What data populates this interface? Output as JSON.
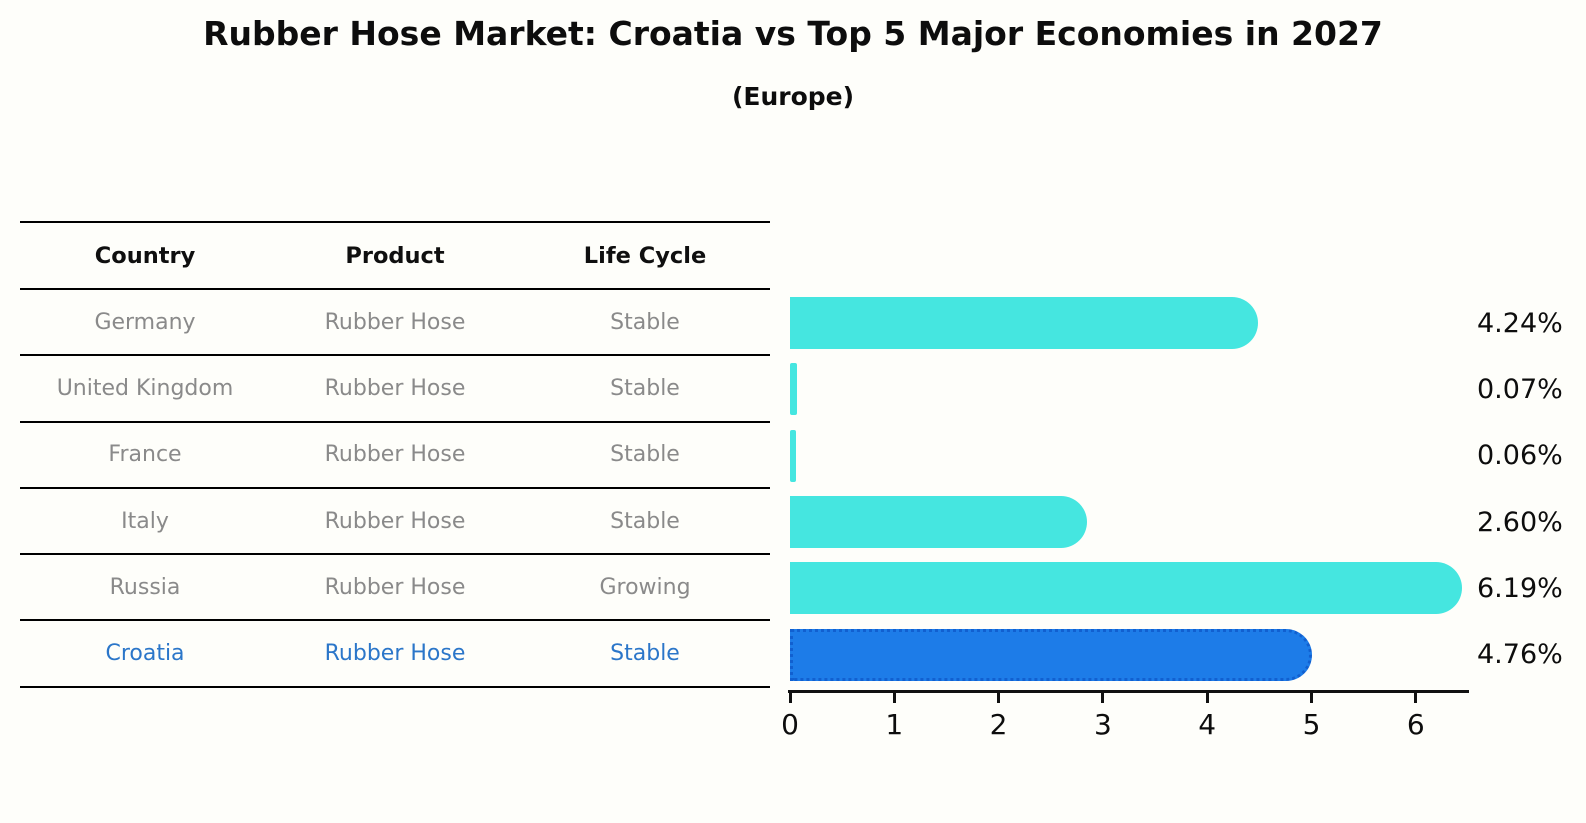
{
  "title": "Rubber Hose Market: Croatia vs Top 5 Major Economies in 2027",
  "subtitle": "(Europe)",
  "table": {
    "headers": [
      "Country",
      "Product",
      "Life Cycle"
    ],
    "rows": [
      {
        "country": "Germany",
        "product": "Rubber Hose",
        "life_cycle": "Stable",
        "highlight": false
      },
      {
        "country": "United Kingdom",
        "product": "Rubber Hose",
        "life_cycle": "Stable",
        "highlight": false
      },
      {
        "country": "France",
        "product": "Rubber Hose",
        "life_cycle": "Stable",
        "highlight": false
      },
      {
        "country": "Italy",
        "product": "Rubber Hose",
        "life_cycle": "Stable",
        "highlight": false
      },
      {
        "country": "Russia",
        "product": "Rubber Hose",
        "life_cycle": "Growing",
        "highlight": false
      },
      {
        "country": "Croatia",
        "product": "Rubber Hose",
        "life_cycle": "Stable",
        "highlight": true
      }
    ]
  },
  "chart_data": {
    "type": "bar",
    "orientation": "horizontal",
    "title": "Rubber Hose Market: Croatia vs Top 5 Major Economies in 2027",
    "subtitle": "(Europe)",
    "categories": [
      "Germany",
      "United Kingdom",
      "France",
      "Italy",
      "Russia",
      "Croatia"
    ],
    "values": [
      4.24,
      0.07,
      0.06,
      2.6,
      6.19,
      4.76
    ],
    "value_labels": [
      "4.24%",
      "0.07%",
      "0.06%",
      "2.60%",
      "6.19%",
      "4.76%"
    ],
    "highlight_index": 5,
    "xlim": [
      0,
      6.5
    ],
    "x_ticks": [
      0,
      1,
      2,
      3,
      4,
      5,
      6
    ],
    "grid": false,
    "legend": "none",
    "bar_color": "#45E6E0",
    "highlight_bar_color": "#1D7CE8",
    "highlight_border_color": "#1160D0",
    "axis_color": "#111111"
  },
  "colors": {
    "background": "#fefefa",
    "table_line": "#000000",
    "header_text": "#0f0f0f",
    "cell_text": "#8a8a8a",
    "highlight_text": "#2b76c9",
    "value_label_text": "#0d0d0d"
  }
}
